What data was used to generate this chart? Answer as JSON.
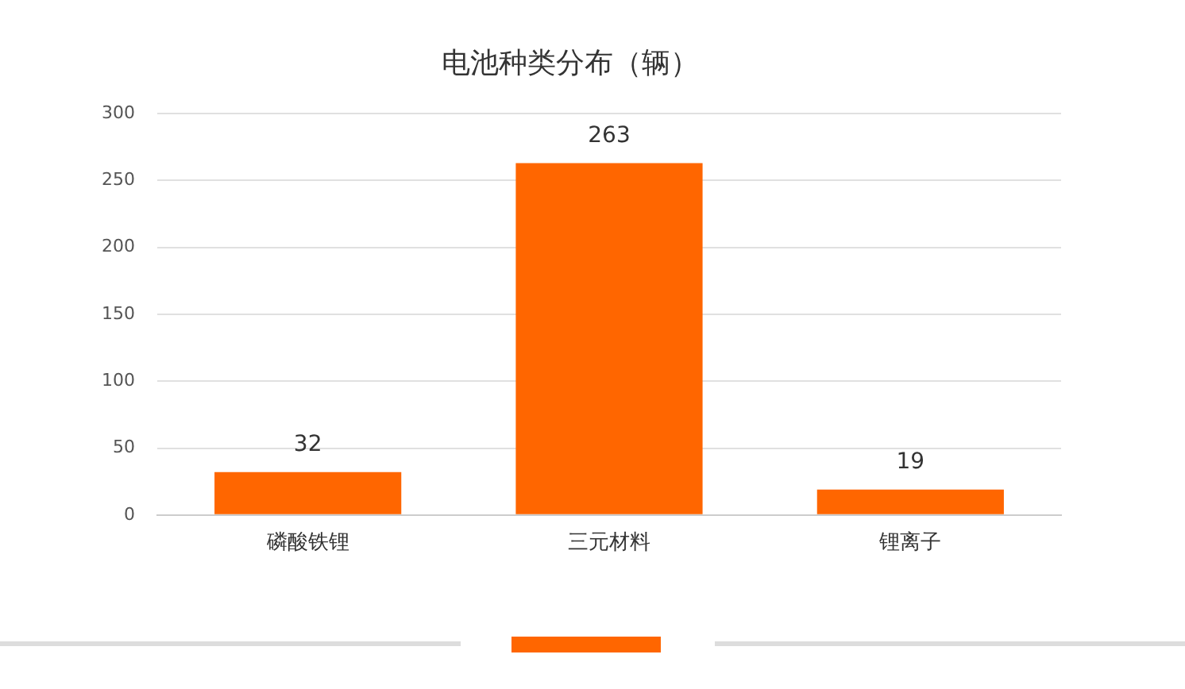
{
  "chart_data": {
    "type": "bar",
    "title": "电池种类分布（辆）",
    "categories": [
      "磷酸铁锂",
      "三元材料",
      "锂离子"
    ],
    "values": [
      32,
      263,
      19
    ],
    "color": "#ff6600",
    "ylim": [
      0,
      300
    ],
    "yticks": [
      0,
      50,
      100,
      150,
      200,
      250,
      300
    ],
    "grid": "y",
    "legend": false,
    "data_labels": true
  }
}
